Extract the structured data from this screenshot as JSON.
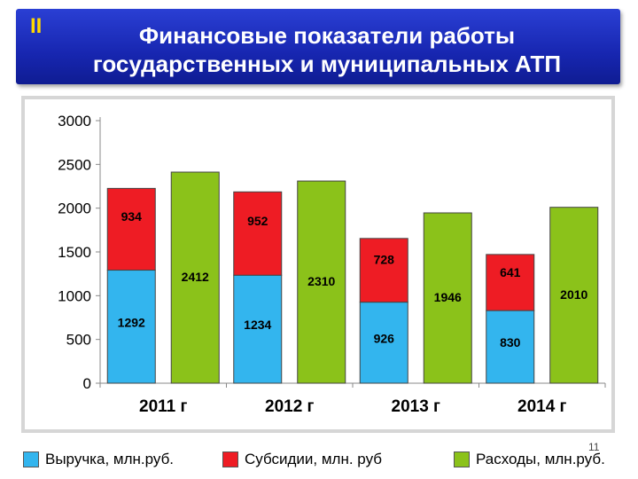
{
  "header": {
    "roman": "II",
    "title_line1": "Финансовые показатели работы",
    "title_line2": "государственных и муниципальных АТП"
  },
  "page_number": "11",
  "colors": {
    "revenue": "#33b5ee",
    "subsidies": "#ee1c24",
    "expenses": "#8bc21a",
    "header_bg": "#1b2bbf"
  },
  "legend": [
    {
      "label": "Выручка, млн.руб.",
      "color": "#33b5ee"
    },
    {
      "label": "Субсидии, млн. руб",
      "color": "#ee1c24"
    },
    {
      "label": "Расходы, млн.руб.",
      "color": "#8bc21a"
    }
  ],
  "chart_data": {
    "type": "bar",
    "categories": [
      "2011 г",
      "2012 г",
      "2013 г",
      "2014 г"
    ],
    "series": [
      {
        "name": "Выручка, млн.руб.",
        "stack": "income",
        "values": [
          1292,
          1234,
          926,
          830
        ]
      },
      {
        "name": "Субсидии, млн. руб",
        "stack": "income",
        "values": [
          934,
          952,
          728,
          641
        ]
      },
      {
        "name": "Расходы, млн.руб.",
        "stack": "expenses",
        "values": [
          2412,
          2310,
          1946,
          2010
        ]
      }
    ],
    "yticks": [
      0,
      500,
      1000,
      1500,
      2000,
      2500,
      3000
    ],
    "ylim": [
      0,
      3000
    ],
    "grid": false,
    "legend_position": "bottom"
  }
}
